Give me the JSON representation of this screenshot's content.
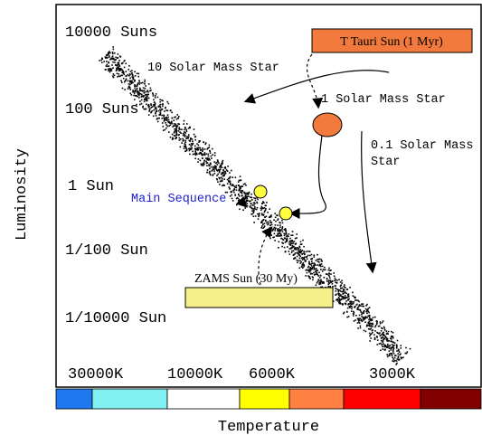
{
  "axis_labels": {
    "y": "Luminosity",
    "x": "Temperature"
  },
  "luminosity_labels": [
    "10000 Suns",
    "100 Suns",
    "1 Sun",
    "1/100 Sun",
    "1/10000 Sun"
  ],
  "temperature_labels": [
    "30000K",
    "10000K",
    "6000K",
    "3000K"
  ],
  "annotations": {
    "t_tauri": "T Tauri Sun (1 Myr)",
    "high_mass": "10 Solar Mass Star",
    "solar_mass": "1 Solar Mass Star",
    "low_mass": [
      "0.1 Solar Mass",
      "Star"
    ],
    "main_sequence": "Main Sequence",
    "zams": "ZAMS Sun (30 My)"
  }
}
